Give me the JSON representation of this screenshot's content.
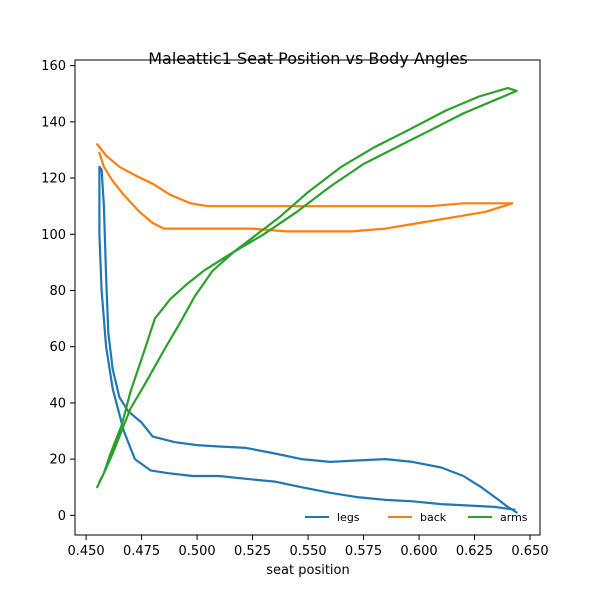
{
  "chart_data": {
    "type": "line",
    "title": "Maleattic1 Seat Position vs Body Angles",
    "xlabel": "seat position",
    "ylabel": "",
    "xlim": [
      0.445,
      0.6545
    ],
    "ylim": [
      -7,
      162
    ],
    "xticks": [
      0.45,
      0.475,
      0.5,
      0.525,
      0.55,
      0.575,
      0.6,
      0.625,
      0.65
    ],
    "xtick_labels": [
      "0.450",
      "0.475",
      "0.500",
      "0.525",
      "0.550",
      "0.575",
      "0.600",
      "0.625",
      "0.650"
    ],
    "yticks": [
      0,
      20,
      40,
      60,
      80,
      100,
      120,
      140,
      160
    ],
    "ytick_labels": [
      "0",
      "20",
      "40",
      "60",
      "80",
      "100",
      "120",
      "140",
      "160"
    ],
    "grid": false,
    "legend_position": "bottom-right",
    "series": [
      {
        "name": "legs",
        "color": "#1f77b4",
        "x": [
          0.643,
          0.634,
          0.622,
          0.61,
          0.597,
          0.585,
          0.572,
          0.56,
          0.547,
          0.535,
          0.522,
          0.51,
          0.498,
          0.487,
          0.479,
          0.472,
          0.467,
          0.462,
          0.459,
          0.457,
          0.456,
          0.456,
          0.456,
          0.457,
          0.458,
          0.459,
          0.46,
          0.462,
          0.465,
          0.469,
          0.475,
          0.48,
          0.49,
          0.5,
          0.51,
          0.522,
          0.535,
          0.547,
          0.56,
          0.572,
          0.585,
          0.597,
          0.61,
          0.62,
          0.628,
          0.635,
          0.64,
          0.644
        ],
        "y": [
          2,
          3,
          3.5,
          4,
          5,
          5.5,
          6.5,
          8,
          10,
          12,
          13,
          14,
          14,
          15,
          16,
          20,
          30,
          45,
          60,
          80,
          100,
          118,
          124,
          123,
          110,
          85,
          65,
          52,
          42,
          37,
          33,
          28,
          26,
          25,
          24.5,
          24,
          22,
          20,
          19,
          19.5,
          20,
          19,
          17,
          14,
          10,
          6,
          3,
          1
        ]
      },
      {
        "name": "back",
        "color": "#ff7f0e",
        "x": [
          0.455,
          0.459,
          0.465,
          0.472,
          0.48,
          0.488,
          0.497,
          0.505,
          0.515,
          0.53,
          0.55,
          0.57,
          0.59,
          0.605,
          0.62,
          0.63,
          0.638,
          0.642,
          0.638,
          0.63,
          0.615,
          0.6,
          0.585,
          0.57,
          0.555,
          0.54,
          0.525,
          0.51,
          0.495,
          0.485,
          0.48,
          0.474,
          0.467,
          0.462,
          0.458,
          0.456
        ],
        "y": [
          132,
          128,
          124,
          121,
          118,
          114,
          111,
          110,
          110,
          110,
          110,
          110,
          110,
          110,
          111,
          111,
          111,
          111,
          110,
          108,
          106,
          104,
          102,
          101,
          101,
          101,
          102,
          102,
          102,
          102,
          104,
          108,
          114,
          119,
          124,
          129
        ]
      },
      {
        "name": "arms",
        "color": "#2ca02c",
        "x": [
          0.455,
          0.458,
          0.462,
          0.466,
          0.47,
          0.476,
          0.481,
          0.486,
          0.492,
          0.499,
          0.507,
          0.517,
          0.527,
          0.537,
          0.55,
          0.565,
          0.58,
          0.595,
          0.612,
          0.627,
          0.64,
          0.644,
          0.635,
          0.62,
          0.605,
          0.59,
          0.575,
          0.56,
          0.545,
          0.53,
          0.515,
          0.503,
          0.495,
          0.488,
          0.481,
          0.476,
          0.47,
          0.466,
          0.461,
          0.458,
          0.456
        ],
        "y": [
          10,
          15,
          22,
          30,
          38,
          46,
          53,
          60,
          68,
          78,
          87,
          94,
          100,
          106,
          115,
          124,
          131,
          137,
          144,
          149,
          152,
          151,
          148,
          143,
          137,
          131,
          125,
          117,
          108,
          100,
          93,
          87,
          82,
          77,
          70,
          58,
          44,
          32,
          22,
          15,
          12
        ]
      }
    ]
  }
}
